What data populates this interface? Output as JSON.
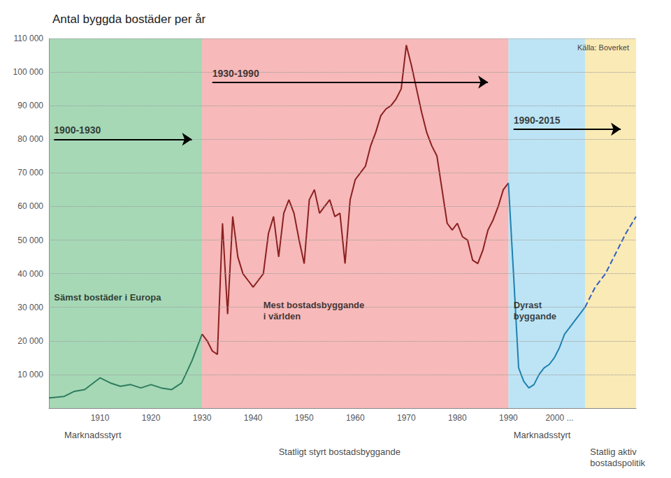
{
  "chart_data": {
    "type": "line",
    "title": "Antal byggda bostäder per år",
    "source": "Källa: Boverket",
    "xlim": [
      1900,
      2015
    ],
    "xticks": [
      1910,
      1920,
      1930,
      1940,
      1950,
      1960,
      1970,
      1980,
      1990,
      {
        "value": 2000,
        "label": "2000 ..."
      }
    ],
    "ylim": [
      0,
      110000
    ],
    "yticks": [
      {
        "value": 10000,
        "label": "10 000"
      },
      {
        "value": 20000,
        "label": "20 000"
      },
      {
        "value": 30000,
        "label": "30 000"
      },
      {
        "value": 40000,
        "label": "40 000"
      },
      {
        "value": 50000,
        "label": "50 000"
      },
      {
        "value": 60000,
        "label": "60 000"
      },
      {
        "value": 70000,
        "label": "70 000"
      },
      {
        "value": 80000,
        "label": "80 000"
      },
      {
        "value": 90000,
        "label": "90 000"
      },
      {
        "value": 100000,
        "label": "100 000"
      },
      {
        "value": 110000,
        "label": "110 000"
      }
    ],
    "grid": true,
    "series": [
      {
        "color": "#2e7d5e",
        "line_style": "solid",
        "x": [
          1900,
          1903,
          1905,
          1907,
          1910,
          1912,
          1914,
          1916,
          1918,
          1920,
          1922,
          1924,
          1926,
          1928,
          1930
        ],
        "values": [
          3000,
          3500,
          5000,
          5500,
          9000,
          7500,
          6500,
          7000,
          6000,
          7000,
          6000,
          5500,
          7500,
          14000,
          22000
        ]
      },
      {
        "color": "#8b2020",
        "line_style": "solid",
        "x": [
          1930,
          1931,
          1932,
          1933,
          1934,
          1935,
          1936,
          1937,
          1938,
          1939,
          1940,
          1941,
          1942,
          1943,
          1944,
          1945,
          1946,
          1947,
          1948,
          1949,
          1950,
          1951,
          1952,
          1953,
          1954,
          1955,
          1956,
          1957,
          1958,
          1959,
          1960,
          1961,
          1962,
          1963,
          1964,
          1965,
          1966,
          1967,
          1968,
          1969,
          1970,
          1971,
          1972,
          1973,
          1974,
          1975,
          1976,
          1977,
          1978,
          1979,
          1980,
          1981,
          1982,
          1983,
          1984,
          1985,
          1986,
          1987,
          1988,
          1989,
          1990
        ],
        "values": [
          22000,
          20000,
          17000,
          16000,
          55000,
          28000,
          57000,
          45000,
          40000,
          38000,
          36000,
          38000,
          40000,
          52000,
          57000,
          45000,
          58000,
          62000,
          58000,
          50000,
          43000,
          62000,
          65000,
          58000,
          60000,
          62000,
          57000,
          58000,
          43000,
          62000,
          68000,
          70000,
          72000,
          78000,
          82000,
          87000,
          89000,
          90000,
          92000,
          95000,
          108000,
          102000,
          95000,
          88000,
          82000,
          78000,
          75000,
          65000,
          55000,
          53000,
          55000,
          51000,
          50000,
          44000,
          43000,
          47000,
          53000,
          56000,
          60000,
          65000,
          67000
        ]
      },
      {
        "color": "#2080b0",
        "line_style": "solid",
        "x": [
          1990,
          1991,
          1992,
          1993,
          1994,
          1995,
          1996,
          1997,
          1998,
          1999,
          2000,
          2001,
          2002,
          2003,
          2004,
          2005
        ],
        "values": [
          67000,
          40000,
          12000,
          8000,
          6000,
          7000,
          10000,
          12000,
          13000,
          15000,
          18000,
          22000,
          24000,
          26000,
          28000,
          30000
        ]
      },
      {
        "color": "#3060c0",
        "line_style": "dashed",
        "x": [
          2005,
          2007,
          2009,
          2011,
          2013,
          2015
        ],
        "values": [
          30000,
          36000,
          40000,
          46000,
          52000,
          57000
        ]
      }
    ],
    "regions": [
      {
        "x0": 1900,
        "x1": 1930,
        "color": "#5cb87a"
      },
      {
        "x0": 1930,
        "x1": 1990,
        "color": "#f08080"
      },
      {
        "x0": 1990,
        "x1": 2005,
        "color": "#87ceeb"
      },
      {
        "x0": 2005,
        "x1": 2015,
        "color": "#f5d87a"
      }
    ],
    "annotations": [
      {
        "text": "Sämst bostäder i Europa",
        "x": 1901,
        "y": 33000
      },
      {
        "text": "Mest bostadsbyggande\ni världen",
        "x": 1942,
        "y": 29000
      },
      {
        "text": "Dyrast\nbyggande",
        "x": 1991,
        "y": 29000
      }
    ],
    "arrows": [
      {
        "label": "1900-1930",
        "x_start": 1901,
        "x_end": 1928,
        "y": 80000
      },
      {
        "label": "1930-1990",
        "x_start": 1932,
        "x_end": 1986,
        "y": 97000
      },
      {
        "label": "1990-2015",
        "x_start": 1991,
        "x_end": 2012,
        "y": 83000
      }
    ],
    "bottom_labels": [
      {
        "text": "Marknadsstyrt",
        "x": 1903
      },
      {
        "text": "Statligt styrt bostadsbyggande",
        "x": 1945
      },
      {
        "text": "Marknadsstyrt",
        "x": 1991
      },
      {
        "text": "Statlig aktiv\nbostadspolitik",
        "x": 2006
      }
    ]
  }
}
